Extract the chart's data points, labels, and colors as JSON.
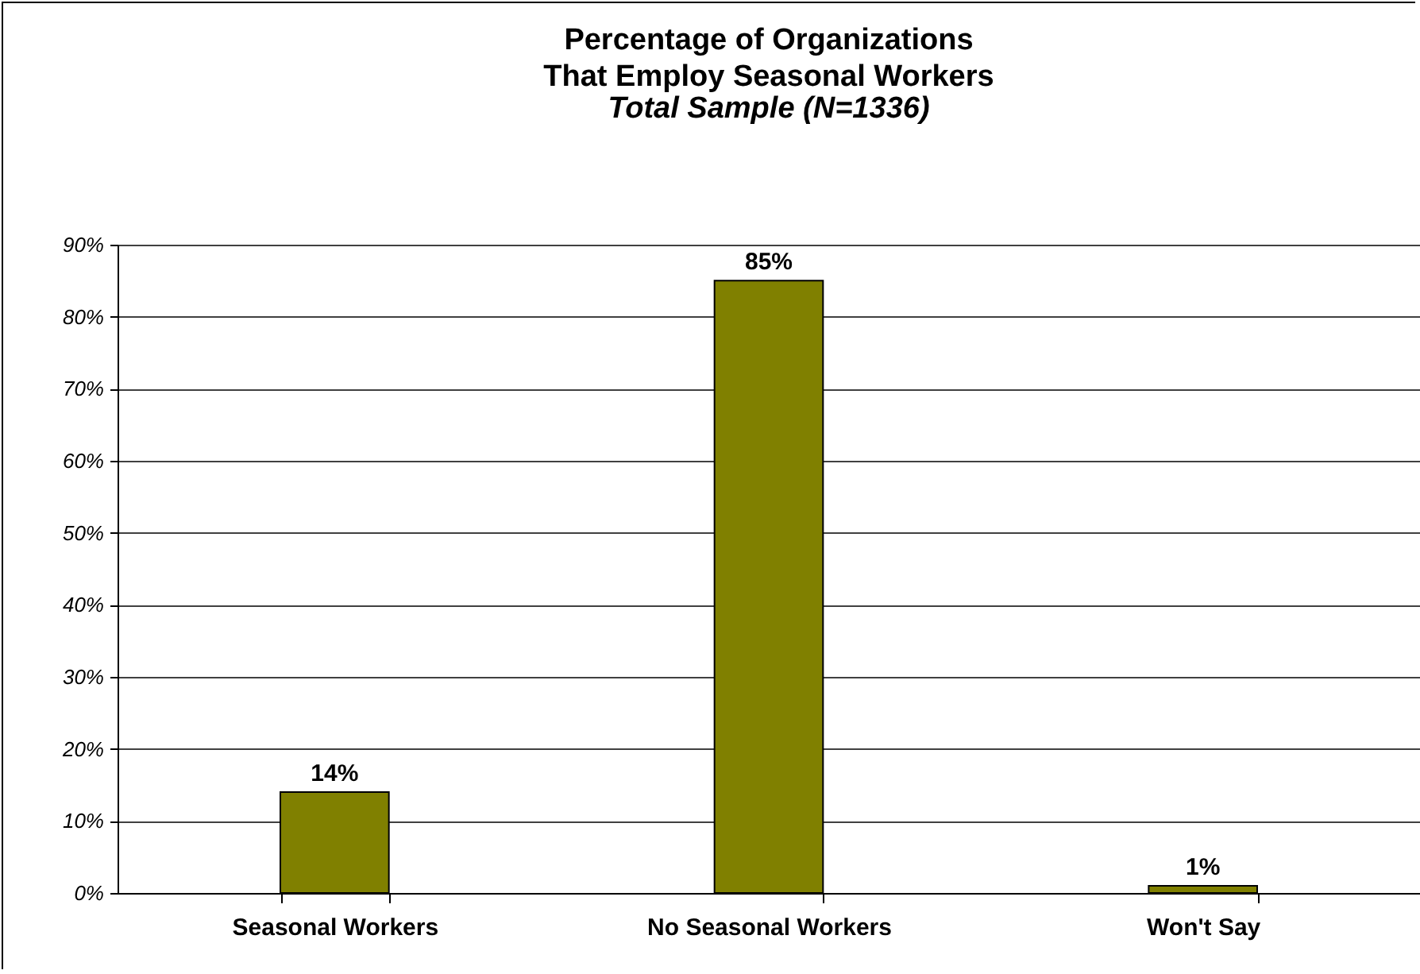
{
  "chart_data": {
    "type": "bar",
    "title": "Percentage of Organizations\nThat Employ Seasonal Workers",
    "subtitle": "Total Sample (N=1336)",
    "categories": [
      "Seasonal Workers",
      "No Seasonal Workers",
      "Won't Say"
    ],
    "values": [
      14,
      85,
      1
    ],
    "color": "#808000",
    "value_labels": [
      "14%",
      "85%",
      "1%"
    ],
    "ylim": [
      0,
      90
    ],
    "yticks": [
      {
        "value": 0,
        "label": "0%"
      },
      {
        "value": 10,
        "label": "10%"
      },
      {
        "value": 20,
        "label": "20%"
      },
      {
        "value": 30,
        "label": "30%"
      },
      {
        "value": 40,
        "label": "40%"
      },
      {
        "value": 50,
        "label": "50%"
      },
      {
        "value": 60,
        "label": "60%"
      },
      {
        "value": 70,
        "label": "70%"
      },
      {
        "value": 80,
        "label": "80%"
      },
      {
        "value": 90,
        "label": "90%"
      }
    ],
    "grid": "y"
  }
}
